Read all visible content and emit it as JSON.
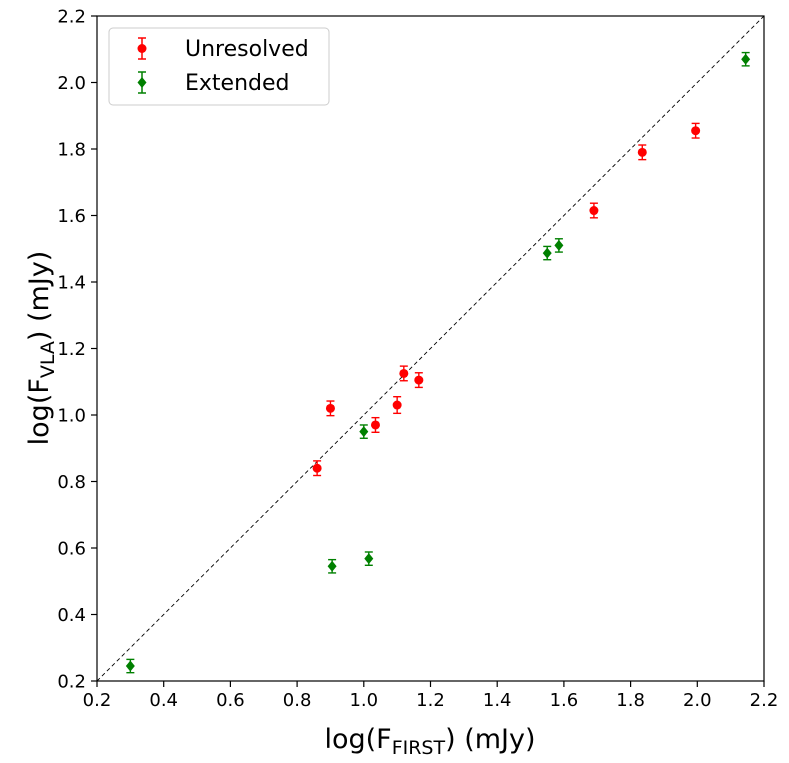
{
  "chart_data": {
    "type": "scatter",
    "title": "",
    "xlabel": {
      "prefix": "log(F",
      "subscript": "FIRST",
      "suffix": ") (mJy)"
    },
    "ylabel": {
      "prefix": "log(F",
      "subscript": "VLA",
      "suffix": ") (mJy)"
    },
    "xlim": [
      0.2,
      2.2
    ],
    "ylim": [
      0.2,
      2.2
    ],
    "xticks": [
      "0.2",
      "0.4",
      "0.6",
      "0.8",
      "1.0",
      "1.2",
      "1.4",
      "1.6",
      "1.8",
      "2.0",
      "2.2"
    ],
    "yticks": [
      "0.2",
      "0.4",
      "0.6",
      "0.8",
      "1.0",
      "1.2",
      "1.4",
      "1.6",
      "1.8",
      "2.0",
      "2.2"
    ],
    "grid": false,
    "legend_position": "top-left",
    "reference_line": {
      "type": "one-to-one",
      "style": "dashed",
      "color": "#000000"
    },
    "series": [
      {
        "name": "Unresolved",
        "marker": "circle",
        "color": "#ff0000",
        "points": [
          {
            "x": 0.86,
            "y": 0.84,
            "err": 0.022
          },
          {
            "x": 0.9,
            "y": 1.02,
            "err": 0.022
          },
          {
            "x": 1.035,
            "y": 0.97,
            "err": 0.022
          },
          {
            "x": 1.1,
            "y": 1.03,
            "err": 0.025
          },
          {
            "x": 1.12,
            "y": 1.125,
            "err": 0.022
          },
          {
            "x": 1.165,
            "y": 1.105,
            "err": 0.022
          },
          {
            "x": 1.69,
            "y": 1.615,
            "err": 0.022
          },
          {
            "x": 1.835,
            "y": 1.79,
            "err": 0.022
          },
          {
            "x": 1.995,
            "y": 1.855,
            "err": 0.022
          }
        ]
      },
      {
        "name": "Extended",
        "marker": "diamond",
        "color": "#008000",
        "points": [
          {
            "x": 0.3,
            "y": 0.245,
            "err": 0.02
          },
          {
            "x": 0.905,
            "y": 0.545,
            "err": 0.02
          },
          {
            "x": 1.0,
            "y": 0.95,
            "err": 0.02
          },
          {
            "x": 1.015,
            "y": 0.568,
            "err": 0.02
          },
          {
            "x": 1.55,
            "y": 1.487,
            "err": 0.02
          },
          {
            "x": 1.585,
            "y": 1.51,
            "err": 0.02
          },
          {
            "x": 2.145,
            "y": 2.07,
            "err": 0.02
          }
        ]
      }
    ]
  }
}
